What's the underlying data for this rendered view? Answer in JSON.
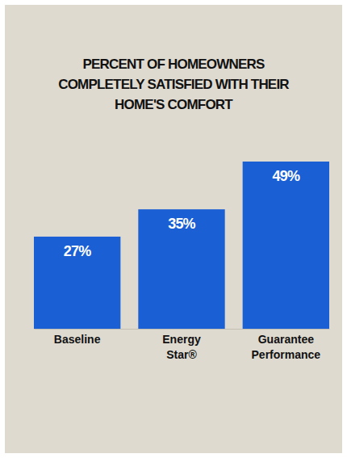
{
  "chart_data": {
    "type": "bar",
    "title": "PERCENT OF HOMEOWNERS COMPLETELY SATISFIED WITH THEIR HOME'S COMFORT",
    "categories": [
      "Baseline",
      "Energy Star®",
      "Guarantee Performance"
    ],
    "values": [
      27,
      35,
      49
    ],
    "value_labels": [
      "27%",
      "35%",
      "49%"
    ],
    "color": "#1a5fd4",
    "ylim": [
      0,
      49
    ],
    "data_labels": true,
    "tick_labels": "x",
    "grid": false
  }
}
